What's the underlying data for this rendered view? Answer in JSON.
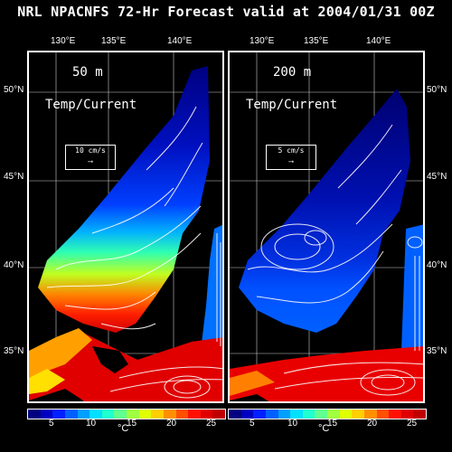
{
  "title": "NRL NPACNFS 72-Hr Forecast valid at 2004/01/31 00Z",
  "lon_labels": [
    "130°E",
    "135°E",
    "140°E"
  ],
  "lat_labels": [
    "50°N",
    "45°N",
    "40°N",
    "35°N"
  ],
  "panels": [
    {
      "depth": "50 m",
      "subtitle": "Temp/Current",
      "ref_vector": "10 cm/s"
    },
    {
      "depth": "200 m",
      "subtitle": "Temp/Current",
      "ref_vector": "5 cm/s"
    }
  ],
  "colorbar": {
    "ticks": [
      "5",
      "10",
      "15",
      "20",
      "25"
    ],
    "unit": "°C",
    "colors": [
      "#000080",
      "#0000c0",
      "#0020ff",
      "#0060ff",
      "#00a0ff",
      "#00e0ff",
      "#20ffd0",
      "#60ff90",
      "#a0ff40",
      "#e0ff00",
      "#ffd000",
      "#ff9000",
      "#ff5000",
      "#ff1000",
      "#e00000",
      "#c00000"
    ]
  }
}
